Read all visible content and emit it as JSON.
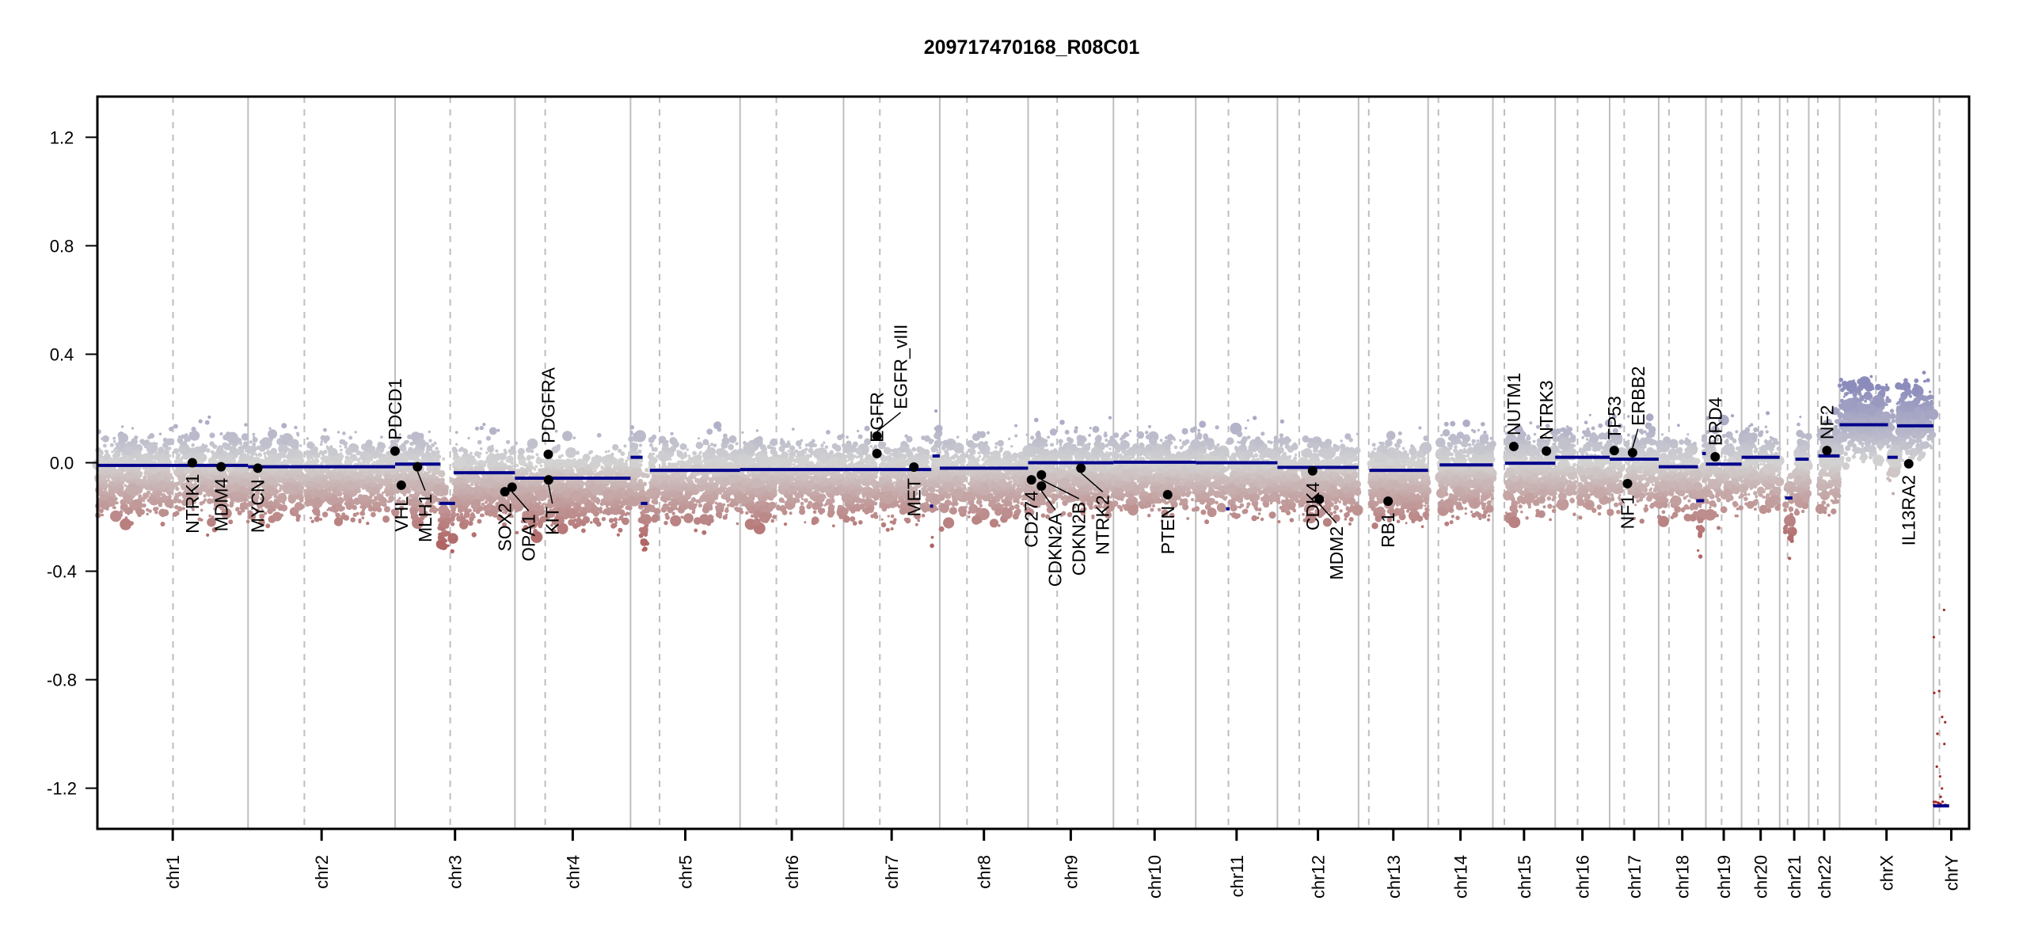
{
  "chart_data": {
    "type": "scatter",
    "title": "209717470168_R08C01",
    "xlabel": "",
    "ylabel": "",
    "ylim": [
      -1.25,
      1.25
    ],
    "yticks": [
      "1.2",
      "0.8",
      "0.4",
      "0.0",
      "-0.4",
      "-0.8",
      "-1.2"
    ],
    "grid": false,
    "legend": "none",
    "colors": {
      "gain": "#8c8cbc",
      "neutral": "#d3d3d3",
      "loss": "#b06464",
      "segment": "#00008b",
      "gene_point": "#000000",
      "chrom_boundary": "#bebebe",
      "centromere": "#bebebe"
    },
    "chromosomes": [
      {
        "name": "chr1",
        "length_mb": 249,
        "centromere_mb": 125
      },
      {
        "name": "chr2",
        "length_mb": 243,
        "centromere_mb": 93
      },
      {
        "name": "chr3",
        "length_mb": 198,
        "centromere_mb": 91
      },
      {
        "name": "chr4",
        "length_mb": 191,
        "centromere_mb": 50
      },
      {
        "name": "chr5",
        "length_mb": 181,
        "centromere_mb": 48
      },
      {
        "name": "chr6",
        "length_mb": 171,
        "centromere_mb": 60
      },
      {
        "name": "chr7",
        "length_mb": 159,
        "centromere_mb": 60
      },
      {
        "name": "chr8",
        "length_mb": 146,
        "centromere_mb": 45
      },
      {
        "name": "chr9",
        "length_mb": 141,
        "centromere_mb": 48
      },
      {
        "name": "chr10",
        "length_mb": 136,
        "centromere_mb": 40
      },
      {
        "name": "chr11",
        "length_mb": 135,
        "centromere_mb": 54
      },
      {
        "name": "chr12",
        "length_mb": 134,
        "centromere_mb": 36
      },
      {
        "name": "chr13",
        "length_mb": 115,
        "centromere_mb": 17
      },
      {
        "name": "chr14",
        "length_mb": 107,
        "centromere_mb": 17
      },
      {
        "name": "chr15",
        "length_mb": 103,
        "centromere_mb": 19
      },
      {
        "name": "chr16",
        "length_mb": 90,
        "centromere_mb": 37
      },
      {
        "name": "chr17",
        "length_mb": 81,
        "centromere_mb": 24
      },
      {
        "name": "chr18",
        "length_mb": 78,
        "centromere_mb": 17
      },
      {
        "name": "chr19",
        "length_mb": 59,
        "centromere_mb": 26
      },
      {
        "name": "chr20",
        "length_mb": 63,
        "centromere_mb": 28
      },
      {
        "name": "chr21",
        "length_mb": 48,
        "centromere_mb": 13
      },
      {
        "name": "chr22",
        "length_mb": 51,
        "centromere_mb": 15
      },
      {
        "name": "chrX",
        "length_mb": 155,
        "centromere_mb": 60
      },
      {
        "name": "chrY",
        "length_mb": 59,
        "centromere_mb": 10
      }
    ],
    "segments": [
      {
        "chr": "chr1",
        "start_mb": 0,
        "end_mb": 249,
        "value": -0.01
      },
      {
        "chr": "chr2",
        "start_mb": 0,
        "end_mb": 243,
        "value": -0.015
      },
      {
        "chr": "chr3",
        "start_mb": 0,
        "end_mb": 75,
        "value": -0.005
      },
      {
        "chr": "chr3",
        "start_mb": 73,
        "end_mb": 99,
        "value": -0.15
      },
      {
        "chr": "chr3",
        "start_mb": 97,
        "end_mb": 198,
        "value": -0.037
      },
      {
        "chr": "chr4",
        "start_mb": 0,
        "end_mb": 191,
        "value": -0.057
      },
      {
        "chr": "chr5",
        "start_mb": 0,
        "end_mb": 20,
        "value": 0.02
      },
      {
        "chr": "chr5",
        "start_mb": 17,
        "end_mb": 28,
        "value": -0.15
      },
      {
        "chr": "chr5",
        "start_mb": 32,
        "end_mb": 181,
        "value": -0.028
      },
      {
        "chr": "chr6",
        "start_mb": 0,
        "end_mb": 171,
        "value": -0.025
      },
      {
        "chr": "chr7",
        "start_mb": 0,
        "end_mb": 145,
        "value": -0.025
      },
      {
        "chr": "chr7",
        "start_mb": 143,
        "end_mb": 148,
        "value": -0.16
      },
      {
        "chr": "chr7",
        "start_mb": 147,
        "end_mb": 159,
        "value": 0.025
      },
      {
        "chr": "chr8",
        "start_mb": 0,
        "end_mb": 146,
        "value": -0.02
      },
      {
        "chr": "chr9",
        "start_mb": 0,
        "end_mb": 141,
        "value": 0.0
      },
      {
        "chr": "chr10",
        "start_mb": 0,
        "end_mb": 136,
        "value": 0.002
      },
      {
        "chr": "chr11",
        "start_mb": 0,
        "end_mb": 135,
        "value": 0.0
      },
      {
        "chr": "chr11",
        "start_mb": 50,
        "end_mb": 56,
        "value": -0.17
      },
      {
        "chr": "chr12",
        "start_mb": 0,
        "end_mb": 134,
        "value": -0.017
      },
      {
        "chr": "chr13",
        "start_mb": 18,
        "end_mb": 115,
        "value": -0.028
      },
      {
        "chr": "chr14",
        "start_mb": 19,
        "end_mb": 107,
        "value": -0.008
      },
      {
        "chr": "chr15",
        "start_mb": 20,
        "end_mb": 103,
        "value": -0.002
      },
      {
        "chr": "chr16",
        "start_mb": 0,
        "end_mb": 90,
        "value": 0.02
      },
      {
        "chr": "chr17",
        "start_mb": 0,
        "end_mb": 81,
        "value": 0.013
      },
      {
        "chr": "chr18",
        "start_mb": 0,
        "end_mb": 65,
        "value": -0.015
      },
      {
        "chr": "chr18",
        "start_mb": 62,
        "end_mb": 75,
        "value": -0.14
      },
      {
        "chr": "chr18",
        "start_mb": 72,
        "end_mb": 78,
        "value": 0.034
      },
      {
        "chr": "chr19",
        "start_mb": 0,
        "end_mb": 59,
        "value": -0.005
      },
      {
        "chr": "chr20",
        "start_mb": 0,
        "end_mb": 63,
        "value": 0.02
      },
      {
        "chr": "chr21",
        "start_mb": 9,
        "end_mb": 21,
        "value": -0.13
      },
      {
        "chr": "chr21",
        "start_mb": 26,
        "end_mb": 48,
        "value": 0.013
      },
      {
        "chr": "chr22",
        "start_mb": 16,
        "end_mb": 51,
        "value": 0.025
      },
      {
        "chr": "chrX",
        "start_mb": 0,
        "end_mb": 80,
        "value": 0.14
      },
      {
        "chr": "chrX",
        "start_mb": 79,
        "end_mb": 96,
        "value": 0.02
      },
      {
        "chr": "chrX",
        "start_mb": 95,
        "end_mb": 155,
        "value": 0.136
      },
      {
        "chr": "chrY",
        "start_mb": 0,
        "end_mb": 26,
        "value": -1.265
      }
    ],
    "genes": [
      {
        "name": "NTRK1",
        "chr": "chr1",
        "pos_mb": 156.8,
        "value": 0.0,
        "label": "below"
      },
      {
        "name": "MDM4",
        "chr": "chr1",
        "pos_mb": 204.5,
        "value": -0.015,
        "label": "below"
      },
      {
        "name": "MYCN",
        "chr": "chr2",
        "pos_mb": 16.1,
        "value": -0.02,
        "label": "below"
      },
      {
        "name": "PDCD1",
        "chr": "chr2",
        "pos_mb": 242.8,
        "value": 0.043,
        "label": "above"
      },
      {
        "name": "VHL",
        "chr": "chr3",
        "pos_mb": 10.2,
        "value": -0.083,
        "label": "below"
      },
      {
        "name": "MLH1",
        "chr": "chr3",
        "pos_mb": 37.0,
        "value": -0.015,
        "label": "below"
      },
      {
        "name": "SOX2",
        "chr": "chr3",
        "pos_mb": 181.4,
        "value": -0.107,
        "label": "below"
      },
      {
        "name": "OPA1",
        "chr": "chr3",
        "pos_mb": 193.3,
        "value": -0.09,
        "label": "below"
      },
      {
        "name": "PDGFRA",
        "chr": "chr4",
        "pos_mb": 55.1,
        "value": 0.031,
        "label": "above"
      },
      {
        "name": "KIT",
        "chr": "chr4",
        "pos_mb": 55.5,
        "value": -0.063,
        "label": "below"
      },
      {
        "name": "EGFR",
        "chr": "chr7",
        "pos_mb": 55.2,
        "value": 0.034,
        "label": "above"
      },
      {
        "name": "EGFR_vIII",
        "chr": "chr7",
        "pos_mb": 55.3,
        "value": 0.098,
        "label": "above"
      },
      {
        "name": "MET",
        "chr": "chr7",
        "pos_mb": 116.3,
        "value": -0.016,
        "label": "below"
      },
      {
        "name": "CD274",
        "chr": "chr9",
        "pos_mb": 5.5,
        "value": -0.063,
        "label": "below"
      },
      {
        "name": "CDKN2A",
        "chr": "chr9",
        "pos_mb": 21.97,
        "value": -0.086,
        "label": "below"
      },
      {
        "name": "CDKN2B",
        "chr": "chr9",
        "pos_mb": 22.0,
        "value": -0.045,
        "label": "below"
      },
      {
        "name": "NTRK2",
        "chr": "chr9",
        "pos_mb": 87.3,
        "value": -0.02,
        "label": "below"
      },
      {
        "name": "PTEN",
        "chr": "chr10",
        "pos_mb": 89.6,
        "value": -0.118,
        "label": "below"
      },
      {
        "name": "CDK4",
        "chr": "chr12",
        "pos_mb": 58.1,
        "value": -0.03,
        "label": "below"
      },
      {
        "name": "MDM2",
        "chr": "chr12",
        "pos_mb": 69.2,
        "value": -0.135,
        "label": "below"
      },
      {
        "name": "RB1",
        "chr": "chr13",
        "pos_mb": 48.9,
        "value": -0.142,
        "label": "below"
      },
      {
        "name": "NUTM1",
        "chr": "chr15",
        "pos_mb": 34.6,
        "value": 0.06,
        "label": "above"
      },
      {
        "name": "NTRK3",
        "chr": "chr15",
        "pos_mb": 88.5,
        "value": 0.043,
        "label": "above"
      },
      {
        "name": "TP53",
        "chr": "chr17",
        "pos_mb": 7.6,
        "value": 0.045,
        "label": "above"
      },
      {
        "name": "NF1",
        "chr": "chr17",
        "pos_mb": 29.5,
        "value": -0.077,
        "label": "below"
      },
      {
        "name": "ERBB2",
        "chr": "chr17",
        "pos_mb": 37.8,
        "value": 0.037,
        "label": "above"
      },
      {
        "name": "BRD4",
        "chr": "chr19",
        "pos_mb": 15.4,
        "value": 0.022,
        "label": "above"
      },
      {
        "name": "NF2",
        "chr": "chr22",
        "pos_mb": 30.0,
        "value": 0.045,
        "label": "above"
      },
      {
        "name": "IL13RA2",
        "chr": "chrX",
        "pos_mb": 114.2,
        "value": -0.004,
        "label": "below"
      }
    ]
  }
}
